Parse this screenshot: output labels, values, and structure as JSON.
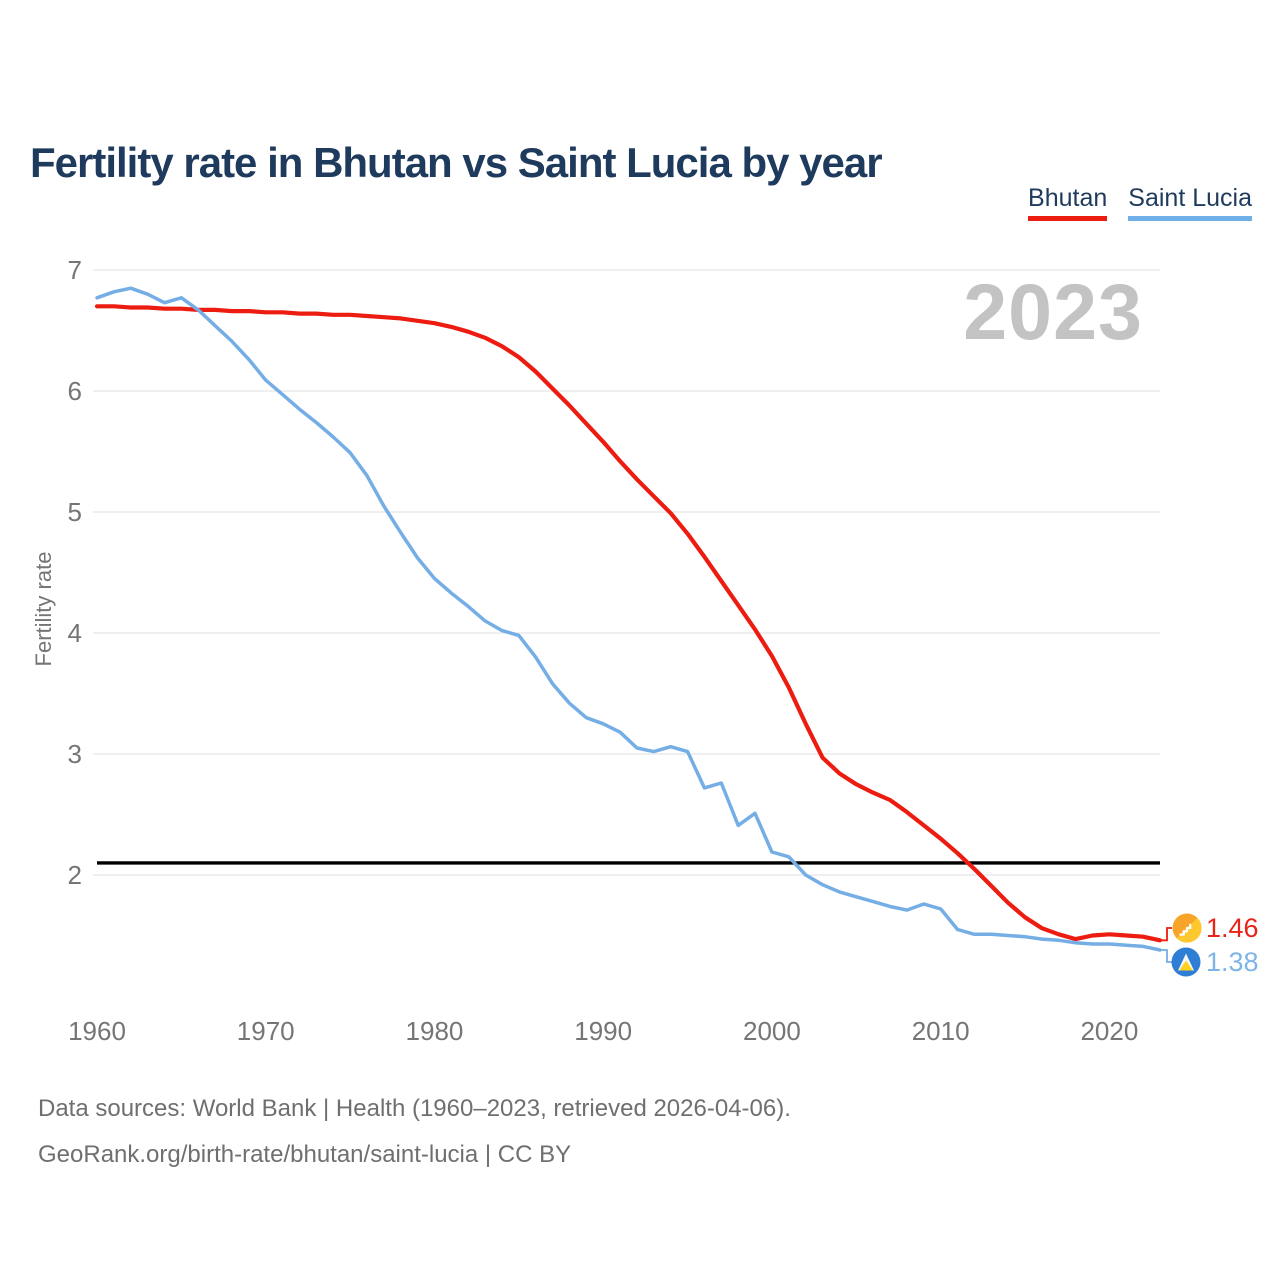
{
  "header": {
    "title": "Fertility rate in Bhutan vs Saint Lucia by year"
  },
  "legend": {
    "items": [
      {
        "label": "Bhutan",
        "color": "#ed1c11"
      },
      {
        "label": "Saint Lucia",
        "color": "#6fb0e8"
      }
    ]
  },
  "watermark": "2023",
  "end_labels": [
    {
      "series": "Bhutan",
      "value": "1.46",
      "color": "#e82317",
      "icon": "bhutan-flag-icon"
    },
    {
      "series": "Saint Lucia",
      "value": "1.38",
      "color": "#7eb5e8",
      "icon": "saint-lucia-flag-icon"
    }
  ],
  "footer": {
    "line1": "Data sources: World Bank | Health (1960–2023, retrieved 2026-04-06).",
    "line2": "GeoRank.org/birth-rate/bhutan/saint-lucia | CC BY"
  },
  "chart_data": {
    "type": "line",
    "title": "Fertility rate in Bhutan vs Saint Lucia by year",
    "xlabel": "",
    "ylabel": "Fertility rate",
    "xlim": [
      1960,
      2023
    ],
    "ylim": [
      1.3,
      7.05
    ],
    "x_ticks": [
      1960,
      1970,
      1980,
      1990,
      2000,
      2010,
      2020
    ],
    "y_ticks": [
      7,
      6,
      5,
      4,
      3,
      2
    ],
    "grid": "horizontal",
    "legend_position": "top-right",
    "reference_line": {
      "value": 2.1,
      "color": "#000000"
    },
    "x": [
      1960,
      1961,
      1962,
      1963,
      1964,
      1965,
      1966,
      1967,
      1968,
      1969,
      1970,
      1971,
      1972,
      1973,
      1974,
      1975,
      1976,
      1977,
      1978,
      1979,
      1980,
      1981,
      1982,
      1983,
      1984,
      1985,
      1986,
      1987,
      1988,
      1989,
      1990,
      1991,
      1992,
      1993,
      1994,
      1995,
      1996,
      1997,
      1998,
      1999,
      2000,
      2001,
      2002,
      2003,
      2004,
      2005,
      2006,
      2007,
      2008,
      2009,
      2010,
      2011,
      2012,
      2013,
      2014,
      2015,
      2016,
      2017,
      2018,
      2019,
      2020,
      2021,
      2022,
      2023
    ],
    "series": [
      {
        "name": "Bhutan",
        "color": "#ed1c11",
        "values": [
          6.7,
          6.7,
          6.69,
          6.69,
          6.68,
          6.68,
          6.67,
          6.67,
          6.66,
          6.66,
          6.65,
          6.65,
          6.64,
          6.64,
          6.63,
          6.63,
          6.62,
          6.61,
          6.6,
          6.58,
          6.56,
          6.53,
          6.49,
          6.44,
          6.37,
          6.28,
          6.16,
          6.02,
          5.88,
          5.73,
          5.58,
          5.42,
          5.27,
          5.13,
          4.99,
          4.82,
          4.63,
          4.43,
          4.23,
          4.03,
          3.81,
          3.55,
          3.25,
          2.97,
          2.84,
          2.75,
          2.68,
          2.62,
          2.52,
          2.41,
          2.3,
          2.18,
          2.05,
          1.91,
          1.77,
          1.65,
          1.56,
          1.51,
          1.47,
          1.5,
          1.51,
          1.5,
          1.49,
          1.46
        ]
      },
      {
        "name": "Saint Lucia",
        "color": "#74aee5",
        "values": [
          6.77,
          6.82,
          6.85,
          6.8,
          6.73,
          6.77,
          6.67,
          6.54,
          6.41,
          6.26,
          6.09,
          5.97,
          5.85,
          5.74,
          5.62,
          5.49,
          5.3,
          5.05,
          4.83,
          4.62,
          4.45,
          4.33,
          4.22,
          4.1,
          4.02,
          3.98,
          3.8,
          3.58,
          3.42,
          3.3,
          3.25,
          3.18,
          3.05,
          3.02,
          3.06,
          3.02,
          2.72,
          2.76,
          2.41,
          2.51,
          2.19,
          2.15,
          2.0,
          1.92,
          1.86,
          1.82,
          1.78,
          1.74,
          1.71,
          1.76,
          1.72,
          1.55,
          1.51,
          1.51,
          1.5,
          1.49,
          1.47,
          1.46,
          1.44,
          1.43,
          1.43,
          1.42,
          1.41,
          1.38
        ]
      }
    ]
  }
}
